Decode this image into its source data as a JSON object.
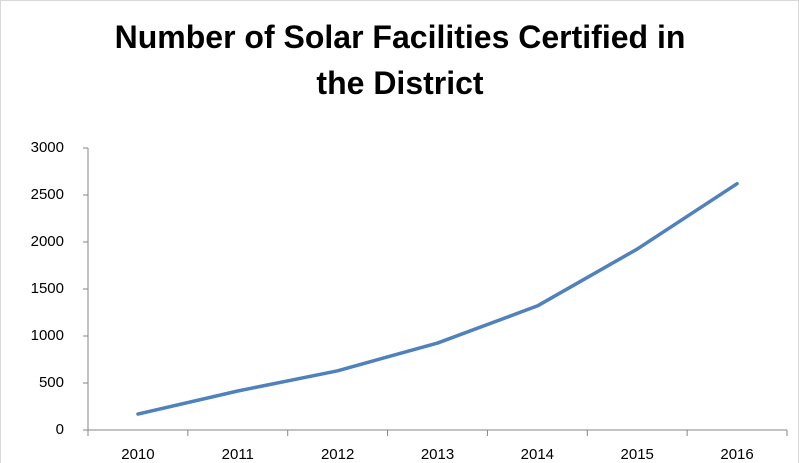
{
  "chart_data": {
    "type": "line",
    "title": "Number of Solar Facilities Certified in the District",
    "categories": [
      "2010",
      "2011",
      "2012",
      "2013",
      "2014",
      "2015",
      "2016"
    ],
    "series": [
      {
        "name": "Solar Facilities",
        "color": "#4f81bd",
        "values": [
          170,
          415,
          630,
          925,
          1320,
          1925,
          2620
        ]
      }
    ],
    "ylim": [
      0,
      3000
    ],
    "yticks": [
      0,
      500,
      1000,
      1500,
      2000,
      2500,
      3000
    ],
    "grid": false,
    "legend": false
  }
}
